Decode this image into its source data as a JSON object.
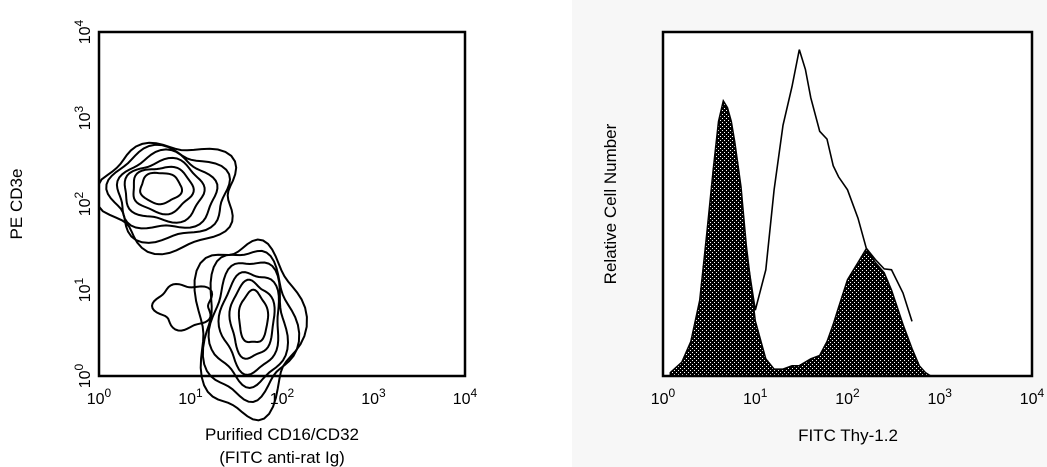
{
  "chart_data": [
    {
      "type": "contour",
      "title": "",
      "xlabel": "Purified CD16/CD32",
      "xlabel_sub": "(FITC anti-rat Ig)",
      "ylabel": "PE CD3e",
      "x_scale": "log",
      "y_scale": "log",
      "xlim": [
        1,
        10000
      ],
      "ylim": [
        1,
        10000
      ],
      "x_ticks": [
        {
          "base": "10",
          "exp": "0"
        },
        {
          "base": "10",
          "exp": "1"
        },
        {
          "base": "10",
          "exp": "2"
        },
        {
          "base": "10",
          "exp": "3"
        },
        {
          "base": "10",
          "exp": "4"
        }
      ],
      "y_ticks": [
        {
          "base": "10",
          "exp": "0"
        },
        {
          "base": "10",
          "exp": "1"
        },
        {
          "base": "10",
          "exp": "2"
        },
        {
          "base": "10",
          "exp": "3"
        },
        {
          "base": "10",
          "exp": "4"
        }
      ],
      "populations": [
        {
          "center_x": 4.5,
          "center_y": 160,
          "levels": 6
        },
        {
          "center_x": 50,
          "center_y": 5,
          "levels": 6
        }
      ]
    },
    {
      "type": "histogram",
      "title": "",
      "xlabel": "FITC Thy-1.2",
      "ylabel": "Relative Cell Number",
      "x_scale": "log",
      "xlim": [
        1,
        10000
      ],
      "x_ticks": [
        {
          "base": "10",
          "exp": "0"
        },
        {
          "base": "10",
          "exp": "1"
        },
        {
          "base": "10",
          "exp": "2"
        },
        {
          "base": "10",
          "exp": "3"
        },
        {
          "base": "10",
          "exp": "4"
        }
      ],
      "series": [
        {
          "style": "filled",
          "x": [
            1.2,
            1.6,
            2.0,
            2.5,
            3.0,
            3.5,
            4.0,
            4.5,
            5.0,
            5.5,
            6.0,
            7.0,
            8.0,
            10,
            13,
            16,
            20,
            25,
            30,
            40,
            50,
            60,
            70,
            80,
            100,
            130,
            160,
            200,
            250,
            300,
            400,
            500,
            600,
            700,
            800
          ],
          "y": [
            0.01,
            0.04,
            0.1,
            0.22,
            0.42,
            0.6,
            0.74,
            0.8,
            0.78,
            0.74,
            0.68,
            0.55,
            0.38,
            0.16,
            0.05,
            0.02,
            0.02,
            0.03,
            0.03,
            0.05,
            0.06,
            0.1,
            0.15,
            0.2,
            0.28,
            0.33,
            0.37,
            0.33,
            0.3,
            0.25,
            0.15,
            0.08,
            0.03,
            0.01,
            0.0
          ]
        },
        {
          "style": "outline",
          "x": [
            8,
            10,
            13,
            16,
            20,
            25,
            30,
            35,
            40,
            50,
            60,
            70,
            80,
            100,
            130,
            160,
            200,
            250,
            300,
            400,
            500
          ],
          "y": [
            0.35,
            0.2,
            0.3,
            0.55,
            0.72,
            0.85,
            0.94,
            0.9,
            0.8,
            0.72,
            0.68,
            0.62,
            0.57,
            0.55,
            0.45,
            0.38,
            0.33,
            0.32,
            0.3,
            0.25,
            0.15
          ]
        }
      ]
    }
  ]
}
